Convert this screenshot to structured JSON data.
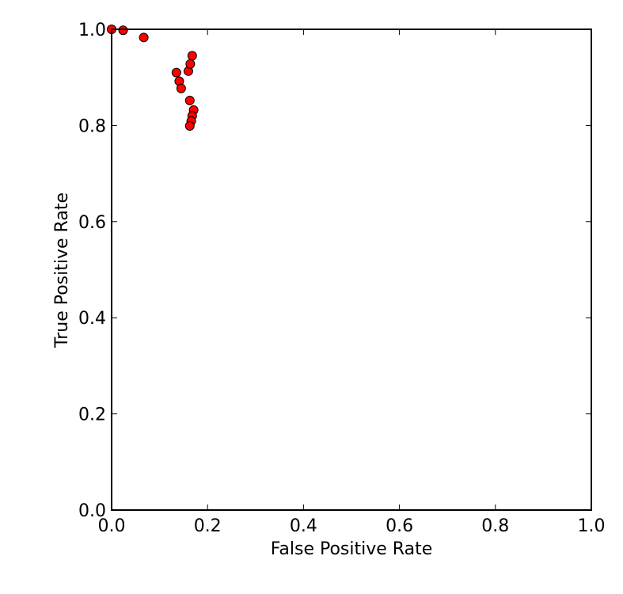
{
  "chart_data": {
    "type": "scatter",
    "title": "",
    "xlabel": "False Positive Rate",
    "ylabel": "True Positive Rate",
    "xlim": [
      0.0,
      1.0
    ],
    "ylim": [
      0.0,
      1.0
    ],
    "x_ticks": [
      "0.0",
      "0.2",
      "0.4",
      "0.6",
      "0.8",
      "1.0"
    ],
    "y_ticks": [
      "0.0",
      "0.2",
      "0.4",
      "0.6",
      "0.8",
      "1.0"
    ],
    "grid": false,
    "legend": "none",
    "marker_color": "#ff0000",
    "marker_edge_color": "#000000",
    "series": [
      {
        "points": [
          {
            "x": 0.0,
            "y": 1.0
          },
          {
            "x": 0.024,
            "y": 0.998
          },
          {
            "x": 0.067,
            "y": 0.983
          },
          {
            "x": 0.135,
            "y": 0.91
          },
          {
            "x": 0.141,
            "y": 0.892
          },
          {
            "x": 0.145,
            "y": 0.877
          },
          {
            "x": 0.16,
            "y": 0.913
          },
          {
            "x": 0.164,
            "y": 0.928
          },
          {
            "x": 0.168,
            "y": 0.945
          },
          {
            "x": 0.163,
            "y": 0.852
          },
          {
            "x": 0.171,
            "y": 0.832
          },
          {
            "x": 0.168,
            "y": 0.82
          },
          {
            "x": 0.166,
            "y": 0.809
          },
          {
            "x": 0.163,
            "y": 0.799
          }
        ]
      }
    ]
  }
}
